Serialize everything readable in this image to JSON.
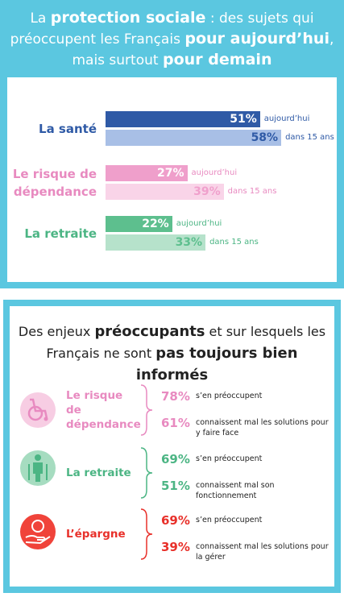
{
  "header": {
    "title": [
      {
        "text": "La ",
        "bold": false
      },
      {
        "text": "protection sociale",
        "bold": true
      },
      {
        "text": " : des sujets qui préoccupent les Français ",
        "bold": false
      },
      {
        "text": "pour aujourd’hui",
        "bold": true
      },
      {
        "text": ", mais surtout ",
        "bold": false
      },
      {
        "text": "pour demain",
        "bold": true
      }
    ]
  },
  "chart_data": {
    "type": "bar",
    "orientation": "horizontal",
    "categories": [
      "La santé",
      "Le risque de dépendance",
      "La retraite"
    ],
    "category_colors": [
      "#2f5aa6",
      "#e88ac0",
      "#4cb584"
    ],
    "series": [
      {
        "name": "aujourd’hui",
        "colors": [
          "#2f5aa6",
          "#ef9fcb",
          "#5dbf8e"
        ],
        "label_colors": [
          "#ffffff",
          "#ffffff",
          "#ffffff"
        ],
        "values": [
          51,
          27,
          22
        ],
        "value_labels": [
          "51%",
          "27%",
          "22%"
        ]
      },
      {
        "name": "dans 15 ans",
        "colors": [
          "#a8bfe6",
          "#f9d4e8",
          "#b6e2cb"
        ],
        "label_colors": [
          "#2f5aa6",
          "#f0a0cc",
          "#5dbf8e"
        ],
        "values": [
          58,
          39,
          33
        ],
        "value_labels": [
          "58%",
          "39%",
          "33%"
        ]
      }
    ]
  },
  "section2": {
    "title": [
      {
        "text": "Des enjeux ",
        "bold": false
      },
      {
        "text": "préoccupants",
        "bold": true
      },
      {
        "text": " et sur lesquels les Français ne sont ",
        "bold": false
      },
      {
        "text": "pas toujours bien informés",
        "bold": true
      }
    ],
    "items": [
      {
        "label": "Le risque de dépendance",
        "color": "#e88ac0",
        "rows": [
          {
            "value": "78%",
            "text": "s’en préoccupent"
          },
          {
            "value": "61%",
            "text": "connaissent mal les solutions pour y faire face"
          }
        ]
      },
      {
        "label": "La retraite",
        "color": "#4cb584",
        "rows": [
          {
            "value": "69%",
            "text": "s’en préoccupent"
          },
          {
            "value": "51%",
            "text": "connaissent mal son fonctionnement"
          }
        ]
      },
      {
        "label": "L’épargne",
        "color": "#e8302a",
        "rows": [
          {
            "value": "69%",
            "text": "s’en préoccupent"
          },
          {
            "value": "39%",
            "text": "connaissent mal les solutions pour la gérer"
          }
        ]
      }
    ]
  }
}
